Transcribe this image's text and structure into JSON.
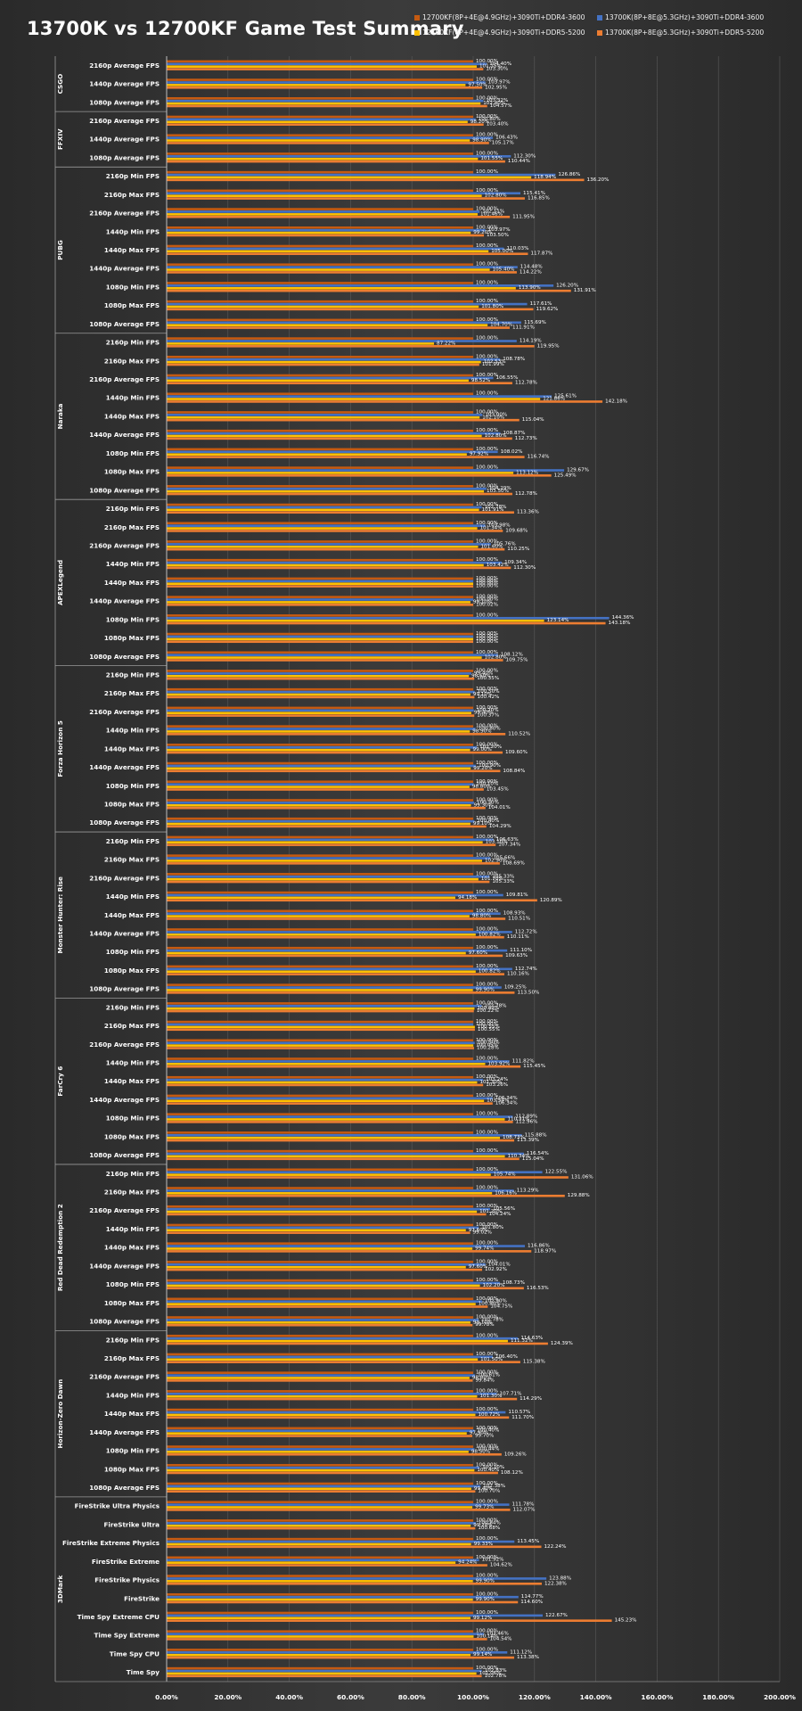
{
  "chart_data": {
    "type": "bar",
    "orientation": "horizontal",
    "title": "13700K vs 12700KF Game Test Summary",
    "legend_position": "top-right",
    "xlim": [
      0,
      200
    ],
    "xticks": [
      "0.00%",
      "20.00%",
      "40.00%",
      "60.00%",
      "80.00%",
      "100.00%",
      "120.00%",
      "140.00%",
      "160.00%",
      "180.00%",
      "200.00%"
    ],
    "series": [
      {
        "name": "12700KF(8P+4E@4.9GHz)+3090Ti+DDR4-3600",
        "color": "#c55a11"
      },
      {
        "name": "13700K(8P+8E@5.3GHz)+3090Ti+DDR4-3600",
        "color": "#4472c4"
      },
      {
        "name": "12700KF(8P+4E@4.9GHz)+3090Ti+DDR5-5200",
        "color": "#ffc000"
      },
      {
        "name": "13700K(8P+8E@5.3GHz)+3090Ti+DDR5-5200",
        "color": "#ed7d31"
      }
    ],
    "groups": [
      {
        "name": "CSGO",
        "items": [
          {
            "label": "2160p Average FPS",
            "values": [
              100.0,
              104.4,
              101.15,
              103.3
            ]
          },
          {
            "label": "1440p Average FPS",
            "values": [
              100.0,
              103.97,
              97.5,
              102.95
            ]
          },
          {
            "label": "1080p Average FPS",
            "values": [
              100.0,
              103.32,
              102.4,
              104.57
            ]
          }
        ]
      },
      {
        "name": "FFXIV",
        "items": [
          {
            "label": "2160p Average FPS",
            "values": [
              100.0,
              100.8,
              98.2,
              103.4
            ]
          },
          {
            "label": "1440p Average FPS",
            "values": [
              100.0,
              106.43,
              98.9,
              105.17
            ]
          },
          {
            "label": "1080p Average FPS",
            "values": [
              100.0,
              112.3,
              101.55,
              110.44
            ]
          }
        ]
      },
      {
        "name": "PUBG",
        "items": [
          {
            "label": "2160p Min FPS",
            "values": [
              100.0,
              126.86,
              118.94,
              136.2
            ]
          },
          {
            "label": "2160p Max FPS",
            "values": [
              100.0,
              115.41,
              102.8,
              116.85
            ]
          },
          {
            "label": "2160p Average FPS",
            "values": [
              100.0,
              102.11,
              101.46,
              111.95
            ]
          },
          {
            "label": "1440p Min FPS",
            "values": [
              100.0,
              103.97,
              99.2,
              103.5
            ]
          },
          {
            "label": "1440p Max FPS",
            "values": [
              100.0,
              110.03,
              105.0,
              117.87
            ]
          },
          {
            "label": "1440p Average FPS",
            "values": [
              100.0,
              114.48,
              105.4,
              114.22
            ]
          },
          {
            "label": "1080p Min FPS",
            "values": [
              100.0,
              126.2,
              113.9,
              131.91
            ]
          },
          {
            "label": "1080p Max FPS",
            "values": [
              100.0,
              117.61,
              101.8,
              119.62
            ]
          },
          {
            "label": "1080p Average FPS",
            "values": [
              100.0,
              115.69,
              104.7,
              111.91
            ]
          }
        ]
      },
      {
        "name": "Naraka",
        "items": [
          {
            "label": "2160p Min FPS",
            "values": [
              100.0,
              114.19,
              87.22,
              119.95
            ]
          },
          {
            "label": "2160p Max FPS",
            "values": [
              100.0,
              108.78,
              102.53,
              101.99
            ]
          },
          {
            "label": "2160p Average FPS",
            "values": [
              100.0,
              106.55,
              98.52,
              112.78
            ]
          },
          {
            "label": "1440p Min FPS",
            "values": [
              100.0,
              125.61,
              121.86,
              142.18
            ]
          },
          {
            "label": "1440p Max FPS",
            "values": [
              100.0,
              103.0,
              102.1,
              115.04
            ]
          },
          {
            "label": "1440p Average FPS",
            "values": [
              100.0,
              108.87,
              102.8,
              112.73
            ]
          },
          {
            "label": "1080p Min FPS",
            "values": [
              100.0,
              108.02,
              97.92,
              116.74
            ]
          },
          {
            "label": "1080p Max FPS",
            "values": [
              100.0,
              129.67,
              113.12,
              125.49
            ]
          },
          {
            "label": "1080p Average FPS",
            "values": [
              100.0,
              104.29,
              103.5,
              112.78
            ]
          }
        ]
      },
      {
        "name": "APEXLegend",
        "items": [
          {
            "label": "2160p Min FPS",
            "values": [
              100.0,
              102.78,
              101.91,
              113.36
            ]
          },
          {
            "label": "2160p Max FPS",
            "values": [
              100.0,
              103.98,
              101.34,
              109.68
            ]
          },
          {
            "label": "2160p Average FPS",
            "values": [
              100.0,
              105.76,
              101.6,
              110.25
            ]
          },
          {
            "label": "1440p Min FPS",
            "values": [
              100.0,
              109.34,
              103.42,
              112.3
            ]
          },
          {
            "label": "1440p Max FPS",
            "values": [
              100.0,
              100.0,
              100.0,
              100.0
            ]
          },
          {
            "label": "1440p Average FPS",
            "values": [
              100.0,
              100.0,
              99.1,
              100.02
            ]
          },
          {
            "label": "1080p Min FPS",
            "values": [
              100.0,
              144.36,
              123.14,
              143.18
            ]
          },
          {
            "label": "1080p Max FPS",
            "values": [
              100.0,
              100.0,
              100.0,
              100.0
            ]
          },
          {
            "label": "1080p Average FPS",
            "values": [
              100.0,
              108.12,
              102.8,
              109.75
            ]
          }
        ]
      },
      {
        "name": "Forza Horizon 5",
        "items": [
          {
            "label": "2160p Min FPS",
            "values": [
              100.0,
              99.4,
              98.6,
              100.35
            ]
          },
          {
            "label": "2160p Max FPS",
            "values": [
              100.0,
              100.5,
              99.1,
              100.42
            ]
          },
          {
            "label": "2160p Average FPS",
            "values": [
              100.0,
              100.2,
              99.4,
              100.37
            ]
          },
          {
            "label": "1440p Min FPS",
            "values": [
              100.0,
              100.8,
              98.9,
              110.52
            ]
          },
          {
            "label": "1440p Max FPS",
            "values": [
              100.0,
              101.2,
              99.0,
              109.6
            ]
          },
          {
            "label": "1440p Average FPS",
            "values": [
              100.0,
              100.9,
              99.2,
              108.84
            ]
          },
          {
            "label": "1080p Min FPS",
            "values": [
              100.0,
              100.1,
              98.8,
              103.45
            ]
          },
          {
            "label": "1080p Max FPS",
            "values": [
              100.0,
              100.3,
              99.3,
              104.01
            ]
          },
          {
            "label": "1080p Average FPS",
            "values": [
              100.0,
              100.4,
              99.1,
              104.29
            ]
          }
        ]
      },
      {
        "name": "Monster Hunter: Rise",
        "items": [
          {
            "label": "2160p Min FPS",
            "values": [
              100.0,
              106.63,
              103.1,
              107.34
            ]
          },
          {
            "label": "2160p Max FPS",
            "values": [
              100.0,
              105.66,
              102.9,
              108.69
            ]
          },
          {
            "label": "2160p Average FPS",
            "values": [
              100.0,
              105.33,
              101.7,
              105.33
            ]
          },
          {
            "label": "1440p Min FPS",
            "values": [
              100.0,
              109.81,
              94.18,
              120.89
            ]
          },
          {
            "label": "1440p Max FPS",
            "values": [
              100.0,
              108.93,
              98.8,
              110.51
            ]
          },
          {
            "label": "1440p Average FPS",
            "values": [
              100.0,
              112.72,
              100.82,
              110.11
            ]
          },
          {
            "label": "1080p Min FPS",
            "values": [
              100.0,
              111.1,
              97.6,
              109.63
            ]
          },
          {
            "label": "1080p Max FPS",
            "values": [
              100.0,
              112.74,
              100.82,
              110.16
            ]
          },
          {
            "label": "1080p Average FPS",
            "values": [
              100.0,
              109.25,
              99.9,
              113.5
            ]
          }
        ]
      },
      {
        "name": "FarCry 6",
        "items": [
          {
            "label": "2160p Min FPS",
            "values": [
              100.0,
              102.78,
              100.42,
              100.22
            ]
          },
          {
            "label": "2160p Max FPS",
            "values": [
              100.0,
              100.0,
              100.55,
              100.55
            ]
          },
          {
            "label": "2160p Average FPS",
            "values": [
              100.0,
              100.5,
              100.05,
              100.28
            ]
          },
          {
            "label": "1440p Min FPS",
            "values": [
              100.0,
              111.82,
              103.92,
              115.45
            ]
          },
          {
            "label": "1440p Max FPS",
            "values": [
              100.0,
              103.24,
              101.3,
              103.26
            ]
          },
          {
            "label": "1440p Average FPS",
            "values": [
              100.0,
              106.34,
              103.54,
              106.34
            ]
          },
          {
            "label": "1080p Min FPS",
            "values": [
              100.0,
              112.89,
              110.31,
              112.96
            ]
          },
          {
            "label": "1080p Max FPS",
            "values": [
              100.0,
              115.88,
              108.73,
              113.39
            ]
          },
          {
            "label": "1080p Average FPS",
            "values": [
              100.0,
              116.54,
              110.34,
              115.04
            ]
          }
        ]
      },
      {
        "name": "Red Dead Redemption 2",
        "items": [
          {
            "label": "2160p Min FPS",
            "values": [
              100.0,
              122.55,
              105.74,
              131.06
            ]
          },
          {
            "label": "2160p Max FPS",
            "values": [
              100.0,
              113.29,
              106.16,
              129.88
            ]
          },
          {
            "label": "2160p Average FPS",
            "values": [
              100.0,
              105.56,
              101.2,
              104.24
            ]
          },
          {
            "label": "1440p Min FPS",
            "values": [
              100.0,
              101.8,
              97.6,
              99.02
            ]
          },
          {
            "label": "1440p Max FPS",
            "values": [
              100.0,
              116.86,
              99.74,
              118.97
            ]
          },
          {
            "label": "1440p Average FPS",
            "values": [
              100.0,
              104.01,
              97.6,
              102.92
            ]
          },
          {
            "label": "1080p Min FPS",
            "values": [
              100.0,
              108.73,
              102.2,
              116.53
            ]
          },
          {
            "label": "1080p Max FPS",
            "values": [
              100.0,
              102.9,
              100.8,
              104.75
            ]
          },
          {
            "label": "1080p Average FPS",
            "values": [
              100.0,
              101.78,
              99.1,
              99.78
            ]
          }
        ]
      },
      {
        "name": "Horizon-Zero Dawn",
        "items": [
          {
            "label": "2160p Min FPS",
            "values": [
              100.0,
              114.63,
              111.32,
              124.39
            ]
          },
          {
            "label": "2160p Max FPS",
            "values": [
              100.0,
              106.4,
              101.5,
              115.38
            ]
          },
          {
            "label": "2160p Average FPS",
            "values": [
              100.0,
              100.61,
              98.8,
              99.84
            ]
          },
          {
            "label": "1440p Min FPS",
            "values": [
              100.0,
              107.71,
              101.3,
              114.29
            ]
          },
          {
            "label": "1440p Max FPS",
            "values": [
              100.0,
              110.57,
              100.72,
              111.7
            ]
          },
          {
            "label": "1440p Average FPS",
            "values": [
              100.0,
              100.4,
              97.9,
              99.7
            ]
          },
          {
            "label": "1080p Min FPS",
            "values": [
              100.0,
              100.44,
              98.5,
              109.26
            ]
          },
          {
            "label": "1080p Max FPS",
            "values": [
              100.0,
              102.1,
              100.4,
              108.12
            ]
          },
          {
            "label": "1080p Average FPS",
            "values": [
              100.0,
              102.38,
              99.4,
              100.7
            ]
          }
        ]
      },
      {
        "name": "3DMark",
        "items": [
          {
            "label": "FireStrike Ultra Physics",
            "values": [
              100.0,
              111.78,
              99.73,
              112.07
            ]
          },
          {
            "label": "FireStrike Ultra",
            "values": [
              100.0,
              100.84,
              99.2,
              100.68
            ]
          },
          {
            "label": "FireStrike Extreme Physics",
            "values": [
              100.0,
              113.45,
              99.33,
              122.24
            ]
          },
          {
            "label": "FireStrike Extreme",
            "values": [
              100.0,
              101.92,
              94.24,
              104.62
            ]
          },
          {
            "label": "FireStrike Physics",
            "values": [
              100.0,
              123.88,
              99.9,
              122.38
            ]
          },
          {
            "label": "FireStrike",
            "values": [
              100.0,
              114.77,
              99.9,
              114.6
            ]
          },
          {
            "label": "Time Spy Extreme CPU",
            "values": [
              100.0,
              122.67,
              99.12,
              145.23
            ]
          },
          {
            "label": "Time Spy Extreme",
            "values": [
              100.0,
              103.46,
              100.14,
              104.54
            ]
          },
          {
            "label": "Time Spy CPU",
            "values": [
              100.0,
              111.12,
              99.14,
              113.38
            ]
          },
          {
            "label": "Time Spy",
            "values": [
              100.0,
              102.83,
              101.06,
              102.78
            ]
          }
        ]
      }
    ]
  }
}
